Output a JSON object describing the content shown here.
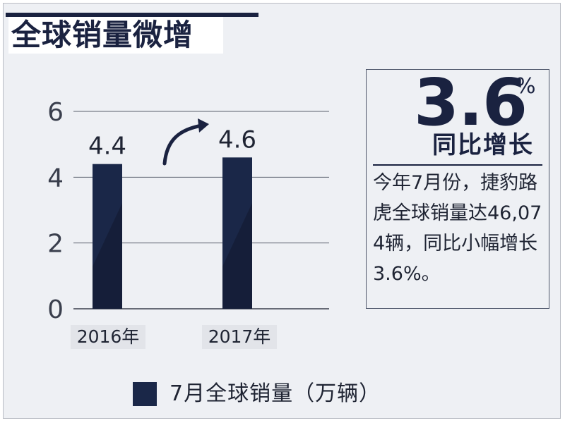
{
  "title": "全球销量微增",
  "chart_data": {
    "type": "bar",
    "categories": [
      "2016年",
      "2017年"
    ],
    "series": [
      {
        "name": "7月全球销量（万辆）",
        "values": [
          4.4,
          4.6
        ]
      }
    ],
    "ylim": [
      0,
      6
    ],
    "yticks": [
      0,
      2,
      4,
      6
    ],
    "data_labels": [
      "4.4",
      "4.6"
    ],
    "legend": "bottom",
    "grid": true,
    "bar_color": "#1a2748"
  },
  "callout": {
    "value": "3.6",
    "unit": "%",
    "label": "同比增长",
    "description": "今年7月份，捷豹路虎全球销量达46,074辆，同比小幅增长3.6%。"
  },
  "colors": {
    "navy": "#1a2240",
    "bar": "#1a2748",
    "panel": "#eef0f4"
  }
}
